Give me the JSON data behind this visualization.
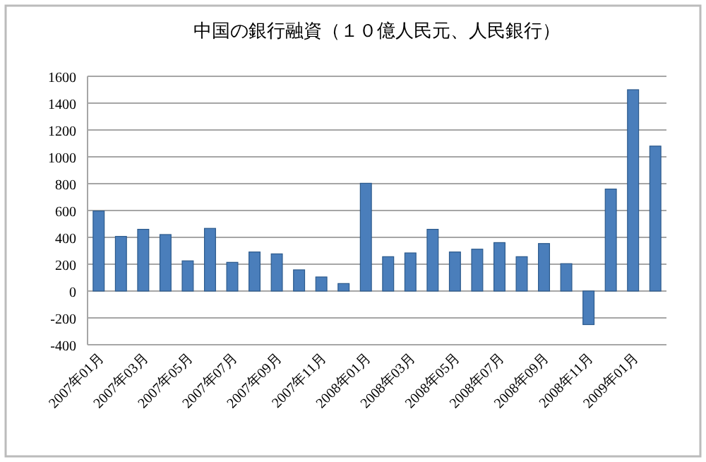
{
  "chart_data": {
    "type": "bar",
    "title": "中国の銀行融資（１０億人民元、人民銀行）",
    "categories": [
      "2007年01月",
      null,
      "2007年03月",
      null,
      "2007年05月",
      null,
      "2007年07月",
      null,
      "2007年09月",
      null,
      "2007年11月",
      null,
      "2008年01月",
      null,
      "2008年03月",
      null,
      "2008年05月",
      null,
      "2008年07月",
      null,
      "2008年09月",
      null,
      "2008年11月",
      null,
      "2009年01月",
      null
    ],
    "values": [
      596,
      407,
      460,
      421,
      225,
      467,
      214,
      291,
      277,
      158,
      105,
      56,
      803,
      256,
      284,
      460,
      291,
      312,
      361,
      256,
      354,
      204,
      -250,
      760,
      1500,
      1080
    ],
    "color": "#4a7ebb",
    "ylim": [
      -400,
      1600
    ],
    "yticks": [
      -400,
      -200,
      0,
      200,
      400,
      600,
      800,
      1000,
      1200,
      1400,
      1600
    ],
    "grid": "y"
  }
}
